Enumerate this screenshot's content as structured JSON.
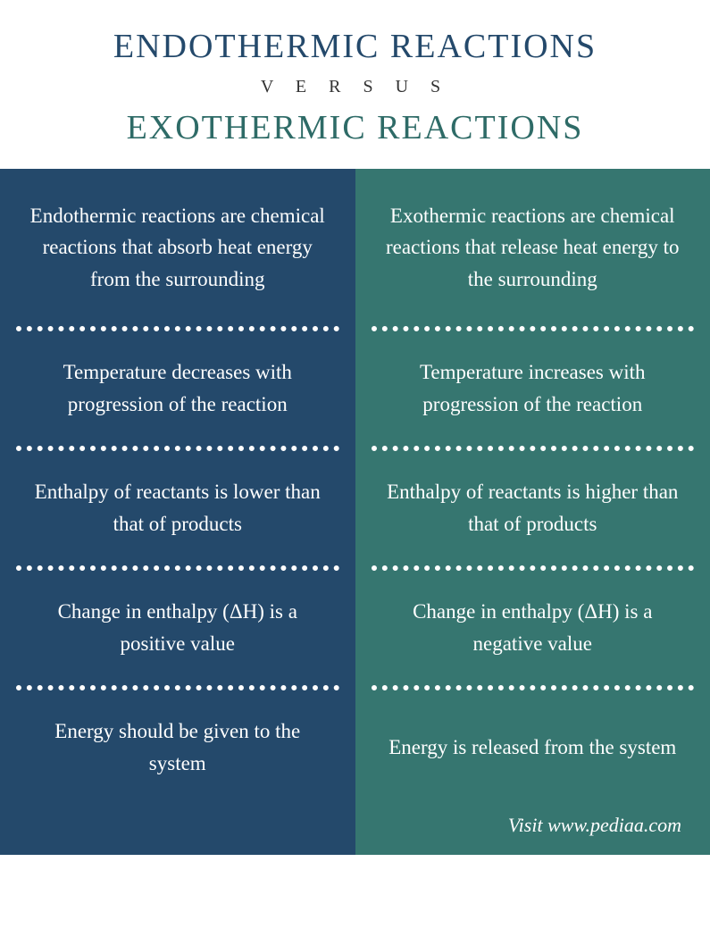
{
  "header": {
    "title_top": "ENDOTHERMIC  REACTIONS",
    "versus": "V E R S U S",
    "title_bottom": "EXOTHERMIC REACTIONS",
    "title_top_color": "#24496b",
    "title_bottom_color": "#2e6b67"
  },
  "columns": {
    "left": {
      "bg_color": "#24496b",
      "divider_color": "#ffffff",
      "cells": [
        "Endothermic reactions are chemical reactions that absorb heat energy from the surrounding",
        "Temperature decreases with progression of the reaction",
        "Enthalpy of reactants is lower than that of products",
        "Change in enthalpy (ΔH) is a positive value",
        "Energy should be given to the system"
      ]
    },
    "right": {
      "bg_color": "#367670",
      "divider_color": "#ffffff",
      "cells": [
        "Exothermic reactions are chemical reactions that release heat energy to the surrounding",
        "Temperature increases with progression of the reaction",
        "Enthalpy of reactants is higher than that of products",
        "Change in enthalpy (ΔH) is a negative value",
        "Energy is released from the system"
      ]
    }
  },
  "footer": {
    "text": "Visit www.pediaa.com"
  },
  "layout": {
    "first_cell_min_height": 176,
    "other_cell_min_height": 128
  }
}
